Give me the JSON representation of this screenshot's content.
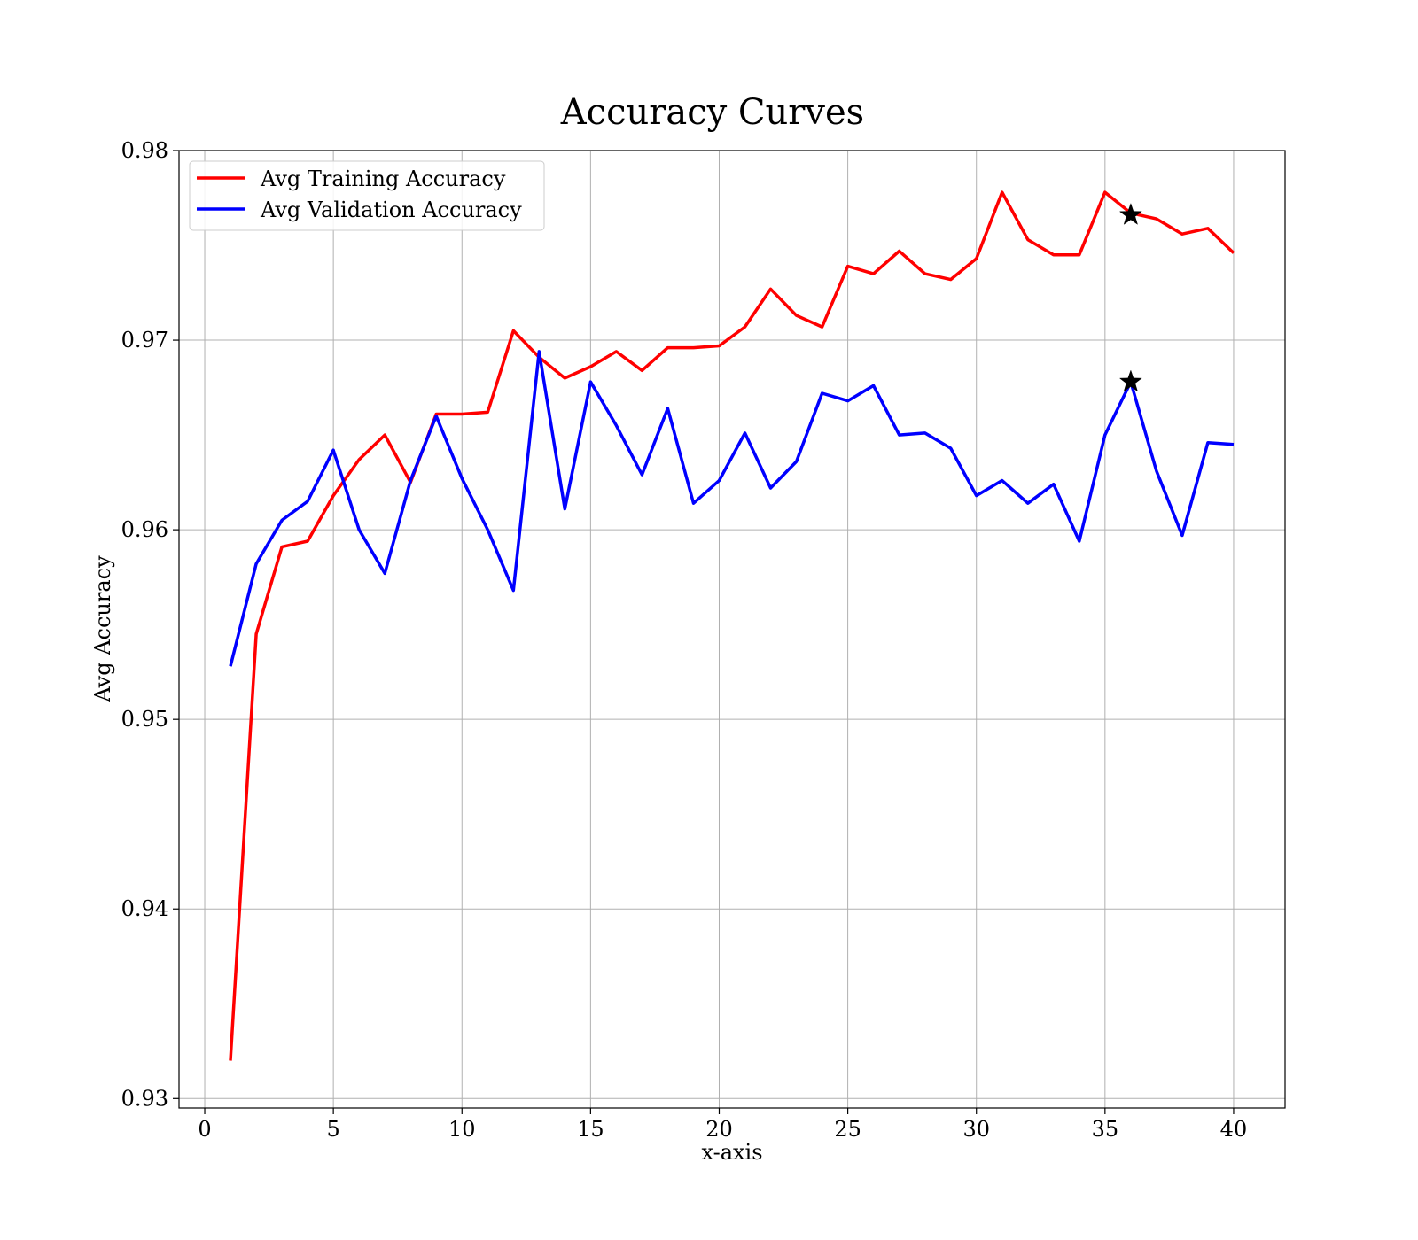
{
  "chart_data": {
    "type": "line",
    "title": "Accuracy Curves",
    "xlabel": "x-axis",
    "ylabel": "Avg Accuracy",
    "xlim": [
      -1,
      42
    ],
    "ylim": [
      0.9295,
      0.98
    ],
    "xticks": [
      0,
      5,
      10,
      15,
      20,
      25,
      30,
      35,
      40
    ],
    "xtick_labels": [
      "0",
      "5",
      "10",
      "15",
      "20",
      "25",
      "30",
      "35",
      "40"
    ],
    "yticks": [
      0.93,
      0.94,
      0.95,
      0.96,
      0.97,
      0.98
    ],
    "ytick_labels": [
      "0.93",
      "0.94",
      "0.95",
      "0.96",
      "0.97",
      "0.98"
    ],
    "grid": true,
    "legend_position": "top-left",
    "x": [
      1,
      2,
      3,
      4,
      5,
      6,
      7,
      8,
      9,
      10,
      11,
      12,
      13,
      14,
      15,
      16,
      17,
      18,
      19,
      20,
      21,
      22,
      23,
      24,
      25,
      26,
      27,
      28,
      29,
      30,
      31,
      32,
      33,
      34,
      35,
      36,
      37,
      38,
      39,
      40
    ],
    "series": [
      {
        "name": "Avg Training Accuracy",
        "color": "#ff0000",
        "values": [
          0.932,
          0.9545,
          0.9591,
          0.9594,
          0.9618,
          0.9637,
          0.965,
          0.9625,
          0.9661,
          0.9661,
          0.9662,
          0.9705,
          0.9691,
          0.968,
          0.9686,
          0.9694,
          0.9684,
          0.9696,
          0.9696,
          0.9697,
          0.9707,
          0.9727,
          0.9713,
          0.9707,
          0.9739,
          0.9735,
          0.9747,
          0.9735,
          0.9732,
          0.9743,
          0.9778,
          0.9753,
          0.9745,
          0.9745,
          0.9778,
          0.9767,
          0.9764,
          0.9756,
          0.9759,
          0.9746
        ]
      },
      {
        "name": "Avg Validation Accuracy",
        "color": "#0000ff",
        "values": [
          0.9528,
          0.9582,
          0.9605,
          0.9615,
          0.9642,
          0.96,
          0.9577,
          0.9626,
          0.966,
          0.9627,
          0.96,
          0.9568,
          0.9694,
          0.9611,
          0.9678,
          0.9655,
          0.9629,
          0.9664,
          0.9614,
          0.9626,
          0.9651,
          0.9622,
          0.9636,
          0.9672,
          0.9668,
          0.9676,
          0.965,
          0.9651,
          0.9643,
          0.9618,
          0.9626,
          0.9614,
          0.9624,
          0.9594,
          0.965,
          0.9678,
          0.9631,
          0.9597,
          0.9646,
          0.9645
        ]
      }
    ],
    "markers": [
      {
        "series": "Avg Training Accuracy",
        "x": 36,
        "y": 0.9766,
        "shape": "star",
        "color": "#000000"
      },
      {
        "series": "Avg Validation Accuracy",
        "x": 36,
        "y": 0.9678,
        "shape": "star",
        "color": "#000000"
      }
    ]
  }
}
